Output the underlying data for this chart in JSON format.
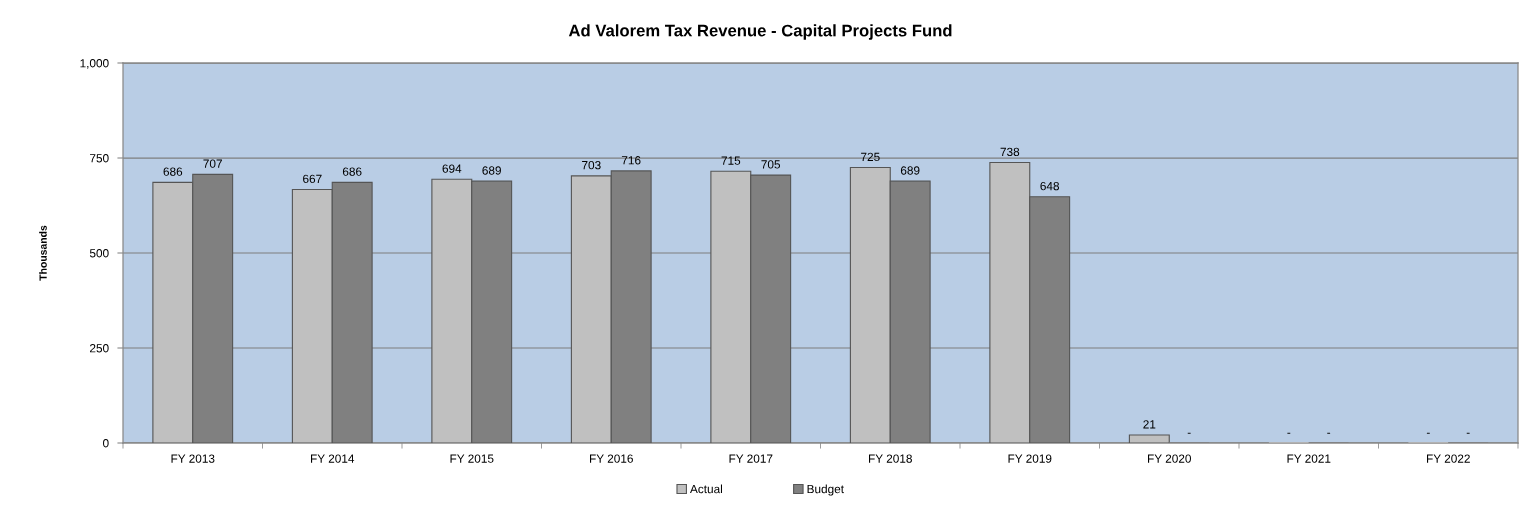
{
  "chart_data": {
    "type": "bar",
    "title": "Ad Valorem Tax Revenue - Capital Projects Fund",
    "ylabel": "Thousands",
    "categories": [
      "FY 2013",
      "FY 2014",
      "FY 2015",
      "FY 2016",
      "FY 2017",
      "FY 2018",
      "FY 2019",
      "FY 2020",
      "FY 2021",
      "FY 2022"
    ],
    "series": [
      {
        "name": "Actual",
        "color": "#c0c0c0",
        "values": [
          686,
          667,
          694,
          703,
          715,
          725,
          738,
          21,
          0,
          0
        ],
        "value_labels": [
          "686",
          "667",
          "694",
          "703",
          "715",
          "725",
          "738",
          "21",
          "-",
          "-"
        ]
      },
      {
        "name": "Budget",
        "color": "#808080",
        "values": [
          707,
          686,
          689,
          716,
          705,
          689,
          648,
          0,
          0,
          0
        ],
        "value_labels": [
          "707",
          "686",
          "689",
          "716",
          "705",
          "689",
          "648",
          "-",
          "-",
          "-"
        ]
      }
    ],
    "ylim": [
      0,
      1000
    ],
    "yticks": [
      0,
      250,
      500,
      750,
      {
        "value": 1000,
        "label": "1,000"
      }
    ],
    "grid": "y",
    "legend": "bottom"
  }
}
